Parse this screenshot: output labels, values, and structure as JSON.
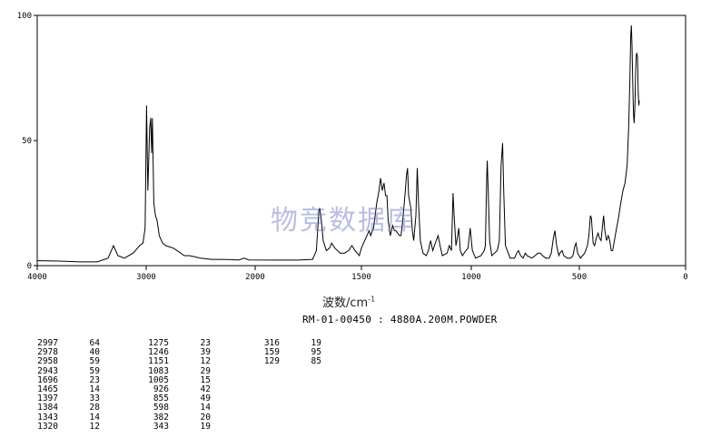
{
  "chart_data": {
    "type": "line",
    "xlim": [
      4000,
      0
    ],
    "ylim": [
      0,
      100
    ],
    "x_ticks": [
      "4000",
      "3000",
      "2000",
      "1500",
      "1000",
      "500",
      "0"
    ],
    "y_ticks": [
      "0",
      "50",
      "100"
    ],
    "xlabel": "波数/cm",
    "xlabel_sup": "-1",
    "series": [
      {
        "points": [
          [
            4000,
            2
          ],
          [
            3800,
            1.8
          ],
          [
            3600,
            1.5
          ],
          [
            3450,
            1.5
          ],
          [
            3350,
            3
          ],
          [
            3300,
            8
          ],
          [
            3260,
            4
          ],
          [
            3200,
            3
          ],
          [
            3120,
            5
          ],
          [
            3060,
            8
          ],
          [
            3030,
            9
          ],
          [
            3010,
            15
          ],
          [
            2997,
            64
          ],
          [
            2985,
            30
          ],
          [
            2978,
            40
          ],
          [
            2968,
            55
          ],
          [
            2958,
            59
          ],
          [
            2950,
            45
          ],
          [
            2943,
            59
          ],
          [
            2930,
            25
          ],
          [
            2915,
            20
          ],
          [
            2900,
            18
          ],
          [
            2880,
            12
          ],
          [
            2850,
            9
          ],
          [
            2820,
            8
          ],
          [
            2750,
            7
          ],
          [
            2700,
            5.5
          ],
          [
            2650,
            4
          ],
          [
            2600,
            4
          ],
          [
            2500,
            3
          ],
          [
            2400,
            2.5
          ],
          [
            2300,
            2.5
          ],
          [
            2150,
            2.3
          ],
          [
            2100,
            3
          ],
          [
            2060,
            2.3
          ],
          [
            1900,
            2.2
          ],
          [
            1800,
            2.2
          ],
          [
            1730,
            2.5
          ],
          [
            1712,
            6
          ],
          [
            1700,
            22
          ],
          [
            1696,
            23
          ],
          [
            1688,
            18
          ],
          [
            1680,
            10
          ],
          [
            1665,
            6
          ],
          [
            1650,
            7
          ],
          [
            1640,
            9
          ],
          [
            1625,
            7
          ],
          [
            1600,
            5
          ],
          [
            1580,
            5
          ],
          [
            1560,
            6
          ],
          [
            1545,
            8
          ],
          [
            1530,
            6
          ],
          [
            1510,
            4
          ],
          [
            1500,
            7
          ],
          [
            1485,
            10
          ],
          [
            1475,
            12
          ],
          [
            1465,
            14
          ],
          [
            1458,
            12
          ],
          [
            1445,
            15
          ],
          [
            1430,
            25
          ],
          [
            1420,
            30
          ],
          [
            1413,
            35
          ],
          [
            1405,
            30
          ],
          [
            1397,
            33
          ],
          [
            1390,
            28
          ],
          [
            1384,
            28
          ],
          [
            1378,
            18
          ],
          [
            1368,
            12
          ],
          [
            1358,
            16
          ],
          [
            1350,
            14
          ],
          [
            1343,
            14
          ],
          [
            1335,
            13
          ],
          [
            1326,
            12
          ],
          [
            1320,
            12
          ],
          [
            1312,
            18
          ],
          [
            1305,
            25
          ],
          [
            1300,
            30
          ],
          [
            1295,
            36
          ],
          [
            1290,
            39
          ],
          [
            1285,
            28
          ],
          [
            1275,
            23
          ],
          [
            1268,
            14
          ],
          [
            1262,
            10
          ],
          [
            1252,
            20
          ],
          [
            1246,
            39
          ],
          [
            1240,
            25
          ],
          [
            1232,
            10
          ],
          [
            1220,
            5
          ],
          [
            1205,
            4
          ],
          [
            1195,
            6
          ],
          [
            1185,
            10
          ],
          [
            1175,
            6
          ],
          [
            1160,
            10
          ],
          [
            1151,
            12
          ],
          [
            1142,
            8
          ],
          [
            1132,
            4
          ],
          [
            1110,
            5
          ],
          [
            1100,
            8
          ],
          [
            1090,
            6
          ],
          [
            1083,
            29
          ],
          [
            1078,
            20
          ],
          [
            1070,
            8
          ],
          [
            1062,
            12
          ],
          [
            1057,
            15
          ],
          [
            1050,
            6
          ],
          [
            1040,
            4
          ],
          [
            1025,
            6
          ],
          [
            1015,
            7
          ],
          [
            1005,
            15
          ],
          [
            995,
            6
          ],
          [
            980,
            3
          ],
          [
            955,
            4
          ],
          [
            940,
            6
          ],
          [
            935,
            8
          ],
          [
            928,
            37
          ],
          [
            926,
            42
          ],
          [
            922,
            30
          ],
          [
            915,
            10
          ],
          [
            905,
            4
          ],
          [
            893,
            5
          ],
          [
            880,
            6
          ],
          [
            870,
            10
          ],
          [
            862,
            40
          ],
          [
            855,
            49
          ],
          [
            850,
            30
          ],
          [
            842,
            8
          ],
          [
            820,
            3
          ],
          [
            800,
            3
          ],
          [
            790,
            5
          ],
          [
            782,
            6
          ],
          [
            772,
            4
          ],
          [
            760,
            3
          ],
          [
            750,
            5
          ],
          [
            742,
            4
          ],
          [
            720,
            3
          ],
          [
            705,
            4
          ],
          [
            692,
            5
          ],
          [
            680,
            5
          ],
          [
            670,
            4
          ],
          [
            655,
            3
          ],
          [
            640,
            3
          ],
          [
            630,
            5
          ],
          [
            620,
            11
          ],
          [
            613,
            14
          ],
          [
            605,
            8
          ],
          [
            595,
            4
          ],
          [
            590,
            5
          ],
          [
            580,
            6
          ],
          [
            572,
            4
          ],
          [
            555,
            3
          ],
          [
            540,
            3
          ],
          [
            530,
            4
          ],
          [
            520,
            8
          ],
          [
            515,
            9
          ],
          [
            508,
            5
          ],
          [
            495,
            3
          ],
          [
            485,
            4
          ],
          [
            475,
            5
          ],
          [
            462,
            8
          ],
          [
            455,
            12
          ],
          [
            448,
            20
          ],
          [
            443,
            19
          ],
          [
            435,
            9
          ],
          [
            428,
            8
          ],
          [
            420,
            11
          ],
          [
            412,
            13
          ],
          [
            405,
            11
          ],
          [
            398,
            10
          ],
          [
            392,
            15
          ],
          [
            386,
            20
          ],
          [
            380,
            14
          ],
          [
            372,
            10
          ],
          [
            364,
            12
          ],
          [
            357,
            10
          ],
          [
            350,
            6
          ],
          [
            343,
            6
          ],
          [
            335,
            10
          ],
          [
            325,
            15
          ],
          [
            316,
            19
          ],
          [
            305,
            25
          ],
          [
            295,
            30
          ],
          [
            285,
            33
          ],
          [
            275,
            40
          ],
          [
            268,
            55
          ],
          [
            262,
            75
          ],
          [
            258,
            92
          ],
          [
            255,
            96
          ],
          [
            252,
            88
          ],
          [
            248,
            70
          ],
          [
            245,
            60
          ],
          [
            242,
            57
          ],
          [
            238,
            65
          ],
          [
            235,
            78
          ],
          [
            232,
            84
          ],
          [
            229,
            85
          ],
          [
            226,
            83
          ],
          [
            223,
            70
          ],
          [
            220,
            64
          ],
          [
            218,
            66
          ]
        ]
      }
    ],
    "peak_table": [
      {
        "w": "2997",
        "i": "64"
      },
      {
        "w": "2978",
        "i": "40"
      },
      {
        "w": "2958",
        "i": "59"
      },
      {
        "w": "2943",
        "i": "59"
      },
      {
        "w": "1696",
        "i": "23"
      },
      {
        "w": "1465",
        "i": "14"
      },
      {
        "w": "1397",
        "i": "33"
      },
      {
        "w": "1384",
        "i": "28"
      },
      {
        "w": "1343",
        "i": "14"
      },
      {
        "w": "1320",
        "i": "12"
      },
      {
        "w": "1275",
        "i": "23"
      },
      {
        "w": "1246",
        "i": "39"
      },
      {
        "w": "1151",
        "i": "12"
      },
      {
        "w": "1083",
        "i": "29"
      },
      {
        "w": "1005",
        "i": "15"
      },
      {
        "w": "926",
        "i": "42"
      },
      {
        "w": "855",
        "i": "49"
      },
      {
        "w": "598",
        "i": "14"
      },
      {
        "w": "382",
        "i": "20"
      },
      {
        "w": "343",
        "i": "19"
      },
      {
        "w": "316",
        "i": "19"
      },
      {
        "w": "159",
        "i": "95"
      },
      {
        "w": "129",
        "i": "85"
      }
    ]
  },
  "sample_id": "RM-01-00450 : 4880A.200M.POWDER",
  "watermark": "物竞数据库"
}
